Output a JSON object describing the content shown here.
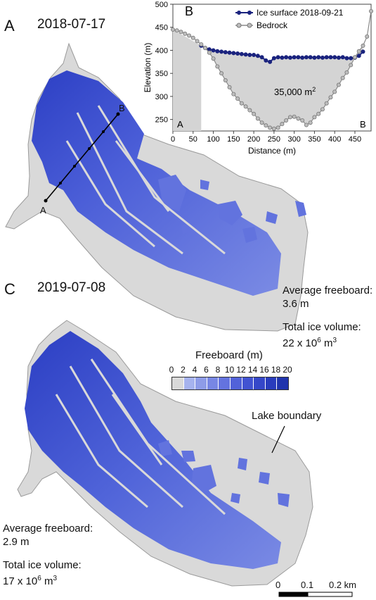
{
  "panel_a": {
    "letter": "A",
    "date": "2018-07-17",
    "transect_start": "A",
    "transect_end": "B"
  },
  "panel_b": {
    "letter": "B",
    "end_left": "A",
    "end_right": "B",
    "area_label": "35,000 m",
    "area_sup": "2"
  },
  "panel_c": {
    "letter": "C",
    "date": "2019-07-08"
  },
  "stats_2018": {
    "freeboard_label": "Average freeboard:",
    "freeboard_value": "3.6 m",
    "volume_label": "Total ice volume:",
    "volume_prefix": "22 x 10",
    "volume_exp": "6",
    "volume_unit": " m",
    "volume_unit_exp": "3"
  },
  "stats_2019": {
    "freeboard_label": "Average freeboard:",
    "freeboard_value": "2.9 m",
    "volume_label": "Total ice volume:",
    "volume_prefix": "17 x 10",
    "volume_exp": "6",
    "volume_unit": " m",
    "volume_unit_exp": "3"
  },
  "colorbar": {
    "title": "Freeboard (m)",
    "ticks": [
      "0",
      "2",
      "4",
      "6",
      "8",
      "10",
      "12",
      "14",
      "16",
      "18",
      "20"
    ],
    "colors": [
      "#d9d9d9",
      "#a6b3ee",
      "#8e9ce8",
      "#7887e4",
      "#6473df",
      "#5262d9",
      "#4253d2",
      "#3547c9",
      "#293cbd",
      "#2034ad"
    ]
  },
  "lake_boundary_label": "Lake boundary",
  "scalebar": {
    "ticks": [
      "0",
      "0.1",
      "0.2 km"
    ]
  },
  "colors": {
    "ice": "#5466db",
    "lake": "#d9d9d9",
    "ice_surface_line": "#1a237e",
    "bedrock_line": "#8a8a8a"
  },
  "chart_data": {
    "type": "line",
    "xlabel": "Distance (m)",
    "ylabel": "Elevation (m)",
    "xlim": [
      0,
      490
    ],
    "ylim": [
      225,
      500
    ],
    "xticks": [
      0,
      50,
      100,
      150,
      200,
      250,
      300,
      350,
      400,
      450
    ],
    "yticks": [
      250,
      300,
      350,
      400,
      450,
      500
    ],
    "legend_position": "top-right",
    "series": [
      {
        "name": "Ice surface 2018-09-21",
        "color": "#1a237e",
        "x": [
          70,
          80,
          90,
          100,
          110,
          120,
          130,
          140,
          150,
          160,
          170,
          180,
          190,
          200,
          210,
          220,
          230,
          240,
          250,
          260,
          270,
          280,
          290,
          300,
          310,
          320,
          330,
          340,
          350,
          360,
          370,
          380,
          390,
          400,
          410,
          420,
          430,
          440,
          450,
          460,
          470
        ],
        "y": [
          410,
          405,
          402,
          400,
          398,
          397,
          396,
          395,
          394,
          393,
          392,
          391,
          390,
          390,
          388,
          385,
          378,
          375,
          383,
          385,
          384,
          385,
          384,
          385,
          385,
          384,
          385,
          385,
          384,
          385,
          384,
          385,
          385,
          385,
          384,
          385,
          383,
          383,
          384,
          388,
          397
        ]
      },
      {
        "name": "Bedrock",
        "color": "#8a8a8a",
        "x": [
          0,
          10,
          20,
          30,
          40,
          50,
          60,
          70,
          80,
          90,
          100,
          110,
          120,
          130,
          140,
          150,
          160,
          170,
          180,
          190,
          200,
          210,
          220,
          230,
          240,
          250,
          260,
          270,
          280,
          290,
          300,
          310,
          320,
          330,
          340,
          350,
          360,
          370,
          380,
          390,
          400,
          410,
          420,
          430,
          440,
          450,
          460,
          470,
          480,
          490
        ],
        "y": [
          445,
          443,
          440,
          436,
          432,
          427,
          420,
          413,
          405,
          395,
          382,
          365,
          350,
          335,
          320,
          305,
          295,
          285,
          278,
          270,
          262,
          252,
          243,
          237,
          232,
          230,
          232,
          240,
          248,
          255,
          256,
          252,
          248,
          238,
          243,
          255,
          262,
          272,
          285,
          298,
          310,
          325,
          340,
          352,
          368,
          385,
          398,
          410,
          430,
          485
        ]
      }
    ],
    "annotations": [
      {
        "text": "35,000 m²",
        "x": 300,
        "y": 325
      },
      {
        "text": "A",
        "x": 15,
        "y": 238
      },
      {
        "text": "B",
        "x": 455,
        "y": 238
      }
    ]
  }
}
